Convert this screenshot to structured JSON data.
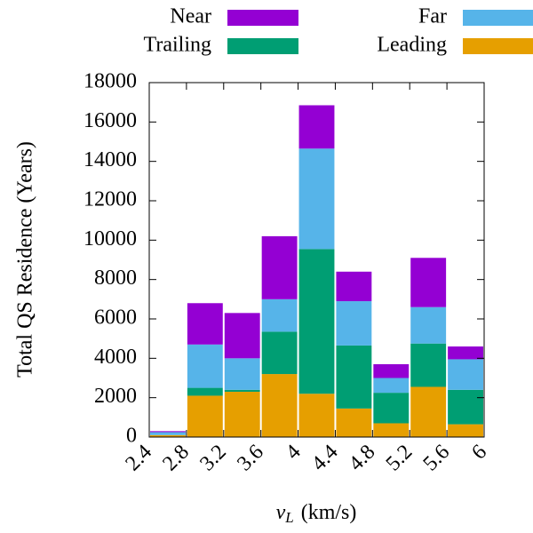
{
  "chart_data": {
    "type": "histogram",
    "stacked": true,
    "ylabel": "Total QS Residence (Years)",
    "xlabel": [
      "v",
      "L",
      "(km/s)"
    ],
    "bins": [
      2.4,
      2.8,
      3.2,
      3.6,
      4.0,
      4.4,
      4.8,
      5.2,
      5.6,
      6.0
    ],
    "series": [
      {
        "name": "Near",
        "color": "#9400d3",
        "values": [
          50,
          2100,
          2300,
          3200,
          2200,
          1500,
          700,
          2500,
          650
        ]
      },
      {
        "name": "Far",
        "color": "#56b4e9",
        "values": [
          150,
          2200,
          1600,
          1650,
          5100,
          2250,
          750,
          1850,
          1550
        ]
      },
      {
        "name": "Trailing",
        "color": "#009e73",
        "values": [
          0,
          400,
          100,
          2150,
          7350,
          3200,
          1550,
          2200,
          1750
        ]
      },
      {
        "name": "Leading",
        "color": "#e69f00",
        "values": [
          100,
          2100,
          2300,
          3200,
          2200,
          1450,
          700,
          2550,
          650
        ]
      }
    ],
    "xlim": [
      2.4,
      6
    ],
    "xticks": [
      {
        "value": 2.4,
        "label": "2.4"
      },
      {
        "value": 2.8,
        "label": "2.8"
      },
      {
        "value": 3.2,
        "label": "3.2"
      },
      {
        "value": 3.6,
        "label": "3.6"
      },
      4,
      {
        "value": 4.4,
        "label": "4.4"
      },
      {
        "value": 4.8,
        "label": "4.8"
      },
      {
        "value": 5.2,
        "label": "5.2"
      },
      {
        "value": 5.6,
        "label": "5.6"
      },
      6
    ],
    "ylim": [
      0,
      18000
    ],
    "yticks": [
      0,
      2000,
      4000,
      6000,
      8000,
      10000,
      12000,
      14000,
      16000,
      18000
    ],
    "legend": "top",
    "grid": false
  }
}
